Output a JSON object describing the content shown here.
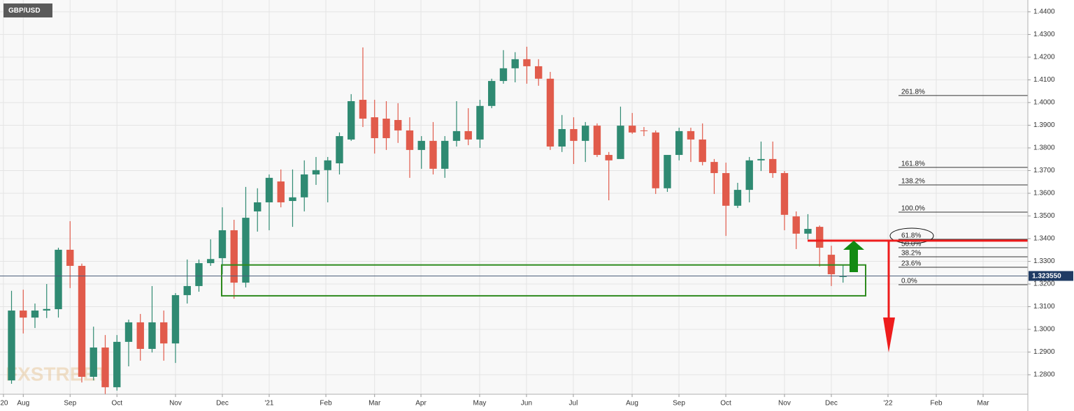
{
  "chart_data": {
    "type": "candlestick",
    "title": "GBP/USD",
    "watermark": "FXSTREET",
    "up_color": "#2f8a72",
    "down_color": "#e15b4b",
    "x": [
      0,
      1,
      2,
      3,
      4,
      5,
      6,
      7,
      8,
      9,
      10,
      11,
      12,
      13,
      14,
      15,
      16,
      17,
      18,
      19,
      20,
      21,
      22,
      23,
      24,
      25,
      26,
      27,
      28,
      29,
      30,
      31,
      32,
      33,
      34,
      35,
      36,
      37,
      38,
      39,
      40,
      41,
      42,
      43,
      44,
      45,
      46,
      47,
      48,
      49,
      50,
      51,
      52,
      53,
      54,
      55,
      56,
      57,
      58,
      59,
      60,
      61,
      62,
      63,
      64,
      65,
      66,
      67,
      68,
      69,
      70,
      71
    ],
    "open": [
      1.2775,
      1.3083,
      1.3052,
      1.3083,
      1.3089,
      1.3351,
      1.328,
      1.2791,
      1.292,
      1.2745,
      1.2945,
      1.3031,
      1.2914,
      1.3031,
      1.2938,
      1.3151,
      1.3191,
      1.3292,
      1.3314,
      1.3437,
      1.3206,
      1.352,
      1.356,
      1.3652,
      1.3566,
      1.3582,
      1.3683,
      1.3702,
      1.3732,
      1.3837,
      1.4012,
      1.3935,
      1.3929,
      1.3923,
      1.3877,
      1.3791,
      1.3831,
      1.3708,
      1.3831,
      1.3874,
      1.3837,
      1.3985,
      1.4095,
      1.4151,
      1.4191,
      1.416,
      1.4105,
      1.3806,
      1.3883,
      1.3831,
      1.3898,
      1.3769,
      1.3751,
      1.3898,
      1.3877,
      1.3868,
      1.3622,
      1.3769,
      1.3874,
      1.3837,
      1.3738,
      1.3689,
      1.3545,
      1.3615,
      1.3745,
      1.3751,
      1.3689,
      1.3498,
      1.3422,
      1.3452,
      1.3329,
      1.3231
    ],
    "high": [
      1.317,
      1.3175,
      1.3114,
      1.32,
      1.336,
      1.3477,
      1.329,
      1.3012,
      1.2975,
      1.2975,
      1.3043,
      1.3068,
      1.3191,
      1.3083,
      1.316,
      1.3308,
      1.3308,
      1.3397,
      1.3538,
      1.3483,
      1.3628,
      1.3622,
      1.3683,
      1.3705,
      1.3705,
      1.3745,
      1.376,
      1.376,
      1.3868,
      1.4037,
      1.4243,
      1.4012,
      1.4006,
      1.3997,
      1.3935,
      1.3852,
      1.3914,
      1.3852,
      1.4006,
      1.3975,
      1.4012,
      1.4105,
      1.4231,
      1.4222,
      1.4246,
      1.4191,
      1.4135,
      1.3945,
      1.3935,
      1.3914,
      1.3908,
      1.3782,
      1.3982,
      1.3954,
      1.3892,
      1.3877,
      1.3769,
      1.3889,
      1.3889,
      1.3908,
      1.3751,
      1.3735,
      1.3646,
      1.376,
      1.3828,
      1.3828,
      1.3698,
      1.352,
      1.3508,
      1.3458,
      1.3369,
      1.3283
    ],
    "low": [
      1.276,
      1.2982,
      1.3006,
      1.305,
      1.3052,
      1.3182,
      1.2766,
      1.2775,
      1.2714,
      1.273,
      1.2837,
      1.2862,
      1.2898,
      1.2862,
      1.2852,
      1.3114,
      1.3166,
      1.328,
      1.3243,
      1.3135,
      1.3185,
      1.3431,
      1.3437,
      1.3538,
      1.3452,
      1.352,
      1.3637,
      1.356,
      1.3683,
      1.3831,
      1.3892,
      1.3775,
      1.3791,
      1.3822,
      1.3668,
      1.3708,
      1.3683,
      1.3668,
      1.3806,
      1.3812,
      1.38,
      1.3975,
      1.4083,
      1.4089,
      1.4083,
      1.4074,
      1.3791,
      1.3782,
      1.3729,
      1.3738,
      1.376,
      1.3569,
      1.3751,
      1.3862,
      1.3852,
      1.3597,
      1.3606,
      1.3745,
      1.3738,
      1.3723,
      1.3597,
      1.3412,
      1.3535,
      1.356,
      1.3698,
      1.3668,
      1.3437,
      1.3354,
      1.3397,
      1.3277,
      1.3191,
      1.3206
    ],
    "close": [
      1.3083,
      1.3052,
      1.3083,
      1.309,
      1.3351,
      1.328,
      1.2791,
      1.292,
      1.2745,
      1.2945,
      1.3031,
      1.2914,
      1.3031,
      1.2938,
      1.3151,
      1.3191,
      1.3292,
      1.331,
      1.3437,
      1.3206,
      1.3492,
      1.356,
      1.3668,
      1.356,
      1.3582,
      1.3683,
      1.3702,
      1.3745,
      1.3852,
      1.4006,
      1.3929,
      1.3843,
      1.3843,
      1.3877,
      1.3791,
      1.3831,
      1.3708,
      1.3831,
      1.3874,
      1.3837,
      1.3985,
      1.4095,
      1.4151,
      1.4191,
      1.416,
      1.4105,
      1.3806,
      1.3883,
      1.3831,
      1.3898,
      1.3769,
      1.3745,
      1.3898,
      1.3868,
      1.3874,
      1.3622,
      1.3769,
      1.3874,
      1.3837,
      1.3738,
      1.3689,
      1.3545,
      1.3615,
      1.3745,
      1.3751,
      1.3689,
      1.3505,
      1.3422,
      1.3443,
      1.336,
      1.3243,
      1.32355
    ],
    "xlim": [
      -0.985,
      86.78
    ],
    "xticks": [
      {
        "value": -0.69,
        "label": "'20"
      },
      {
        "value": 1,
        "label": "Aug"
      },
      {
        "value": 5,
        "label": "Sep"
      },
      {
        "value": 9,
        "label": "Oct"
      },
      {
        "value": 14,
        "label": "Nov"
      },
      {
        "value": 18,
        "label": "Dec"
      },
      {
        "value": 22,
        "label": "'21"
      },
      {
        "value": 26.84,
        "label": "Feb"
      },
      {
        "value": 31,
        "label": "Mar"
      },
      {
        "value": 34.96,
        "label": "Apr"
      },
      {
        "value": 39.97,
        "label": "May"
      },
      {
        "value": 43.97,
        "label": "Jun"
      },
      {
        "value": 47.97,
        "label": "Jul"
      },
      {
        "value": 52.99,
        "label": "Aug"
      },
      {
        "value": 56.99,
        "label": "Sep"
      },
      {
        "value": 60.99,
        "label": "Oct"
      },
      {
        "value": 66,
        "label": "Nov"
      },
      {
        "value": 70,
        "label": "Dec"
      },
      {
        "value": 74.84,
        "label": "'22"
      },
      {
        "value": 78.96,
        "label": "Feb"
      },
      {
        "value": 82.96,
        "label": "Mar"
      }
    ],
    "ylim": [
      1.2714,
      1.4452
    ],
    "yticks": [
      {
        "value": 1.28,
        "label": "1.2800"
      },
      {
        "value": 1.29,
        "label": "1.2900"
      },
      {
        "value": 1.3,
        "label": "1.3000"
      },
      {
        "value": 1.31,
        "label": "1.3100"
      },
      {
        "value": 1.32,
        "label": "1.3200"
      },
      {
        "value": 1.33,
        "label": "1.3300"
      },
      {
        "value": 1.34,
        "label": "1.3400"
      },
      {
        "value": 1.35,
        "label": "1.3500"
      },
      {
        "value": 1.36,
        "label": "1.3600"
      },
      {
        "value": 1.37,
        "label": "1.3700"
      },
      {
        "value": 1.38,
        "label": "1.3800"
      },
      {
        "value": 1.39,
        "label": "1.3900"
      },
      {
        "value": 1.4,
        "label": "1.4000"
      },
      {
        "value": 1.41,
        "label": "1.4100"
      },
      {
        "value": 1.42,
        "label": "1.4200"
      },
      {
        "value": 1.43,
        "label": "1.4300"
      },
      {
        "value": 1.44,
        "label": "1.4400"
      }
    ],
    "grid": true,
    "last_price": {
      "value": 1.32355,
      "label": "1.323550"
    },
    "fibonacci": [
      {
        "label": "261.8%",
        "value": 1.4031
      },
      {
        "label": "161.8%",
        "value": 1.3714
      },
      {
        "label": "138.2%",
        "value": 1.3637
      },
      {
        "label": "100.0%",
        "value": 1.3517
      },
      {
        "label": "61.8%",
        "value": 1.3397
      },
      {
        "label": "50.0%",
        "value": 1.336
      },
      {
        "label": "38.2%",
        "value": 1.332
      },
      {
        "label": "23.6%",
        "value": 1.3274
      },
      {
        "label": "0.0%",
        "value": 1.3197
      }
    ],
    "support_zone": [
      1.3148,
      1.3284
    ],
    "resistance": 1.3391,
    "target": 1.2898
  }
}
